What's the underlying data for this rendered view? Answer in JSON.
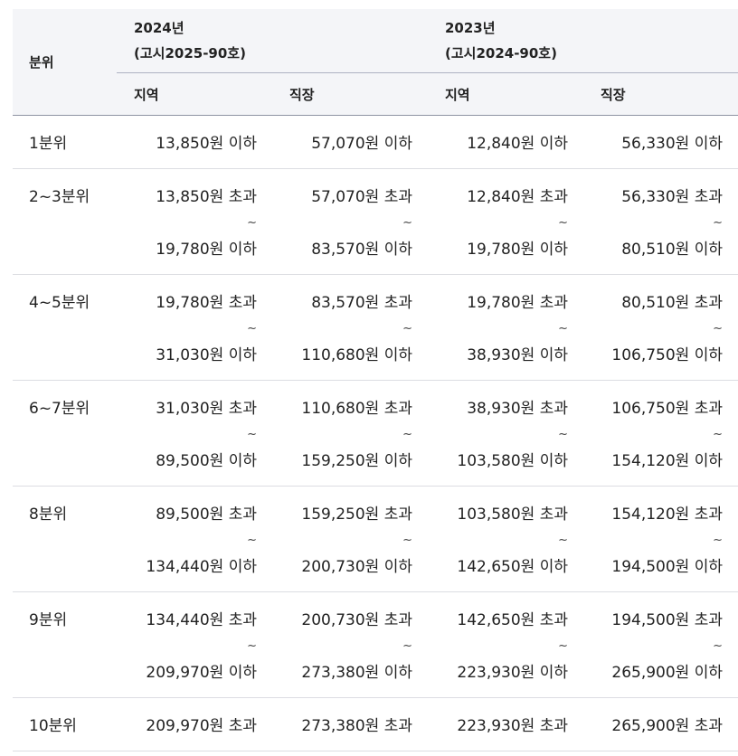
{
  "header": {
    "row_label": "분위",
    "years": [
      {
        "year": "2024년",
        "notice": "(고시2025-90호)"
      },
      {
        "year": "2023년",
        "notice": "(고시2024-90호)"
      }
    ],
    "sub": [
      "지역",
      "직장",
      "지역",
      "직장"
    ]
  },
  "tilde": "~",
  "rows": [
    {
      "label": "1분위",
      "cells": [
        {
          "a": "13,850원 이하",
          "b": ""
        },
        {
          "a": "57,070원 이하",
          "b": ""
        },
        {
          "a": "12,840원 이하",
          "b": ""
        },
        {
          "a": "56,330원 이하",
          "b": ""
        }
      ]
    },
    {
      "label": "2~3분위",
      "cells": [
        {
          "a": "13,850원 초과",
          "b": "19,780원 이하"
        },
        {
          "a": "57,070원 초과",
          "b": "83,570원 이하"
        },
        {
          "a": "12,840원 초과",
          "b": "19,780원 이하"
        },
        {
          "a": "56,330원 초과",
          "b": "80,510원 이하"
        }
      ]
    },
    {
      "label": "4~5분위",
      "cells": [
        {
          "a": "19,780원 초과",
          "b": "31,030원 이하"
        },
        {
          "a": "83,570원 초과",
          "b": "110,680원 이하"
        },
        {
          "a": "19,780원 초과",
          "b": "38,930원 이하"
        },
        {
          "a": "80,510원 초과",
          "b": "106,750원 이하"
        }
      ]
    },
    {
      "label": "6~7분위",
      "cells": [
        {
          "a": "31,030원 초과",
          "b": "89,500원 이하"
        },
        {
          "a": "110,680원 초과",
          "b": "159,250원 이하"
        },
        {
          "a": "38,930원 초과",
          "b": "103,580원 이하"
        },
        {
          "a": "106,750원 초과",
          "b": "154,120원 이하"
        }
      ]
    },
    {
      "label": "8분위",
      "cells": [
        {
          "a": "89,500원 초과",
          "b": "134,440원 이하"
        },
        {
          "a": "159,250원 초과",
          "b": "200,730원 이하"
        },
        {
          "a": "103,580원 초과",
          "b": "142,650원 이하"
        },
        {
          "a": "154,120원 초과",
          "b": "194,500원 이하"
        }
      ]
    },
    {
      "label": "9분위",
      "cells": [
        {
          "a": "134,440원 초과",
          "b": "209,970원 이하"
        },
        {
          "a": "200,730원 초과",
          "b": "273,380원 이하"
        },
        {
          "a": "142,650원 초과",
          "b": "223,930원 이하"
        },
        {
          "a": "194,500원 초과",
          "b": "265,900원 이하"
        }
      ]
    },
    {
      "label": "10분위",
      "cells": [
        {
          "a": "209,970원 초과",
          "b": ""
        },
        {
          "a": "273,380원 초과",
          "b": ""
        },
        {
          "a": "223,930원 초과",
          "b": ""
        },
        {
          "a": "265,900원 초과",
          "b": ""
        }
      ]
    }
  ]
}
